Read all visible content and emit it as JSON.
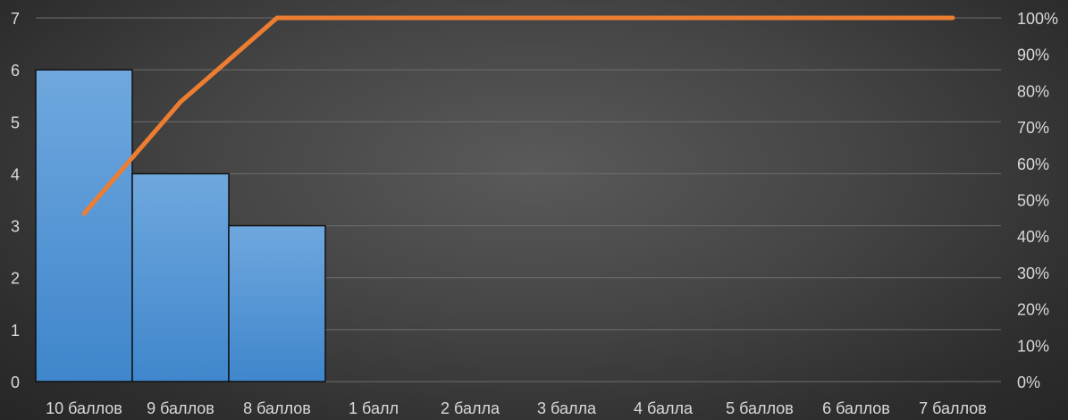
{
  "chart_data": {
    "type": "bar",
    "categories": [
      "10 баллов",
      "9 баллов",
      "8 баллов",
      "1 балл",
      "2 балла",
      "3 балла",
      "4 балла",
      "5 баллов",
      "6 баллов",
      "7 баллов"
    ],
    "series": [
      {
        "type": "bar",
        "values": [
          6,
          4,
          3,
          0,
          0,
          0,
          0,
          0,
          0,
          0
        ]
      },
      {
        "type": "line",
        "axis": "right",
        "values": [
          46.2,
          76.9,
          100,
          100,
          100,
          100,
          100,
          100,
          100,
          100
        ]
      }
    ],
    "y_left": {
      "ylim": [
        0,
        7
      ],
      "ticks": [
        "0",
        "1",
        "2",
        "3",
        "4",
        "5",
        "6",
        "7"
      ]
    },
    "y_right": {
      "ylim": [
        0,
        100
      ],
      "ticks": [
        "0%",
        "10%",
        "20%",
        "30%",
        "40%",
        "50%",
        "60%",
        "70%",
        "80%",
        "90%",
        "100%"
      ]
    },
    "grid": true,
    "legend": "none",
    "colors": {
      "bar": "#5b9bd5",
      "line": "#ed7d31",
      "grid": "#6e6e6e",
      "text": "#d9d9d9"
    }
  }
}
